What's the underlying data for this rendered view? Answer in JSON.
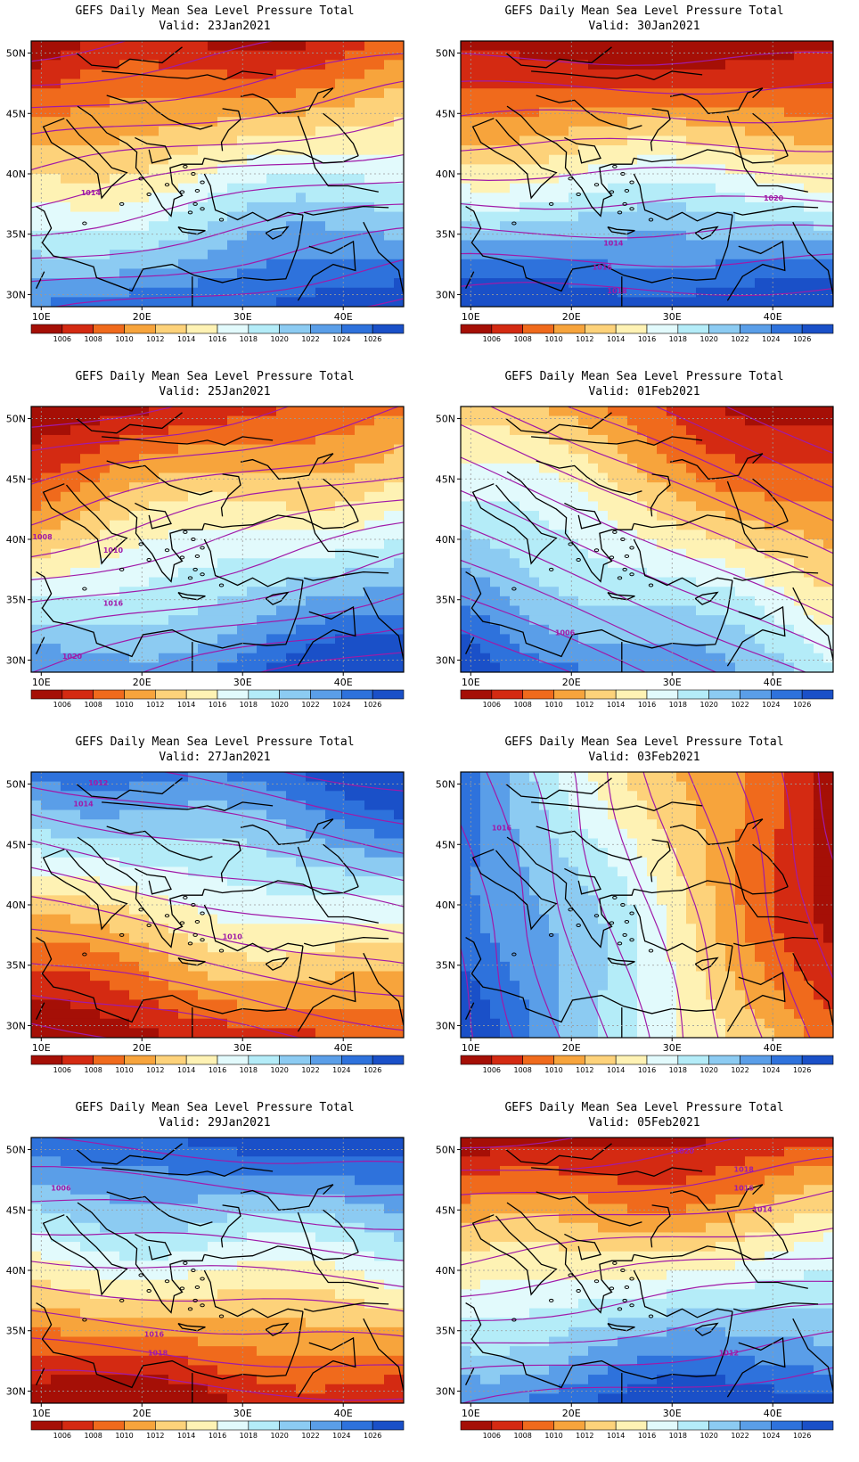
{
  "map_title": "GEFS Daily Mean Sea Level Pressure Total",
  "valid_prefix": "Valid:",
  "lat_labels": [
    "50N",
    "45N",
    "40N",
    "35N",
    "30N"
  ],
  "lat_values": [
    50,
    45,
    40,
    35,
    30
  ],
  "lon_labels": [
    "10E",
    "20E",
    "30E",
    "40E"
  ],
  "lon_values": [
    10,
    20,
    30,
    40
  ],
  "colorbar": {
    "levels": [
      "1006",
      "1008",
      "1010",
      "1012",
      "1014",
      "1016",
      "1018",
      "1020",
      "1022",
      "1024",
      "1026"
    ],
    "colors": [
      "#a50f06",
      "#d42a12",
      "#f06a1c",
      "#f7a43c",
      "#fdd27a",
      "#fef2b4",
      "#e2fafc",
      "#b4ecf8",
      "#8ccbf2",
      "#5a9ee8",
      "#2e72dc",
      "#1a50c8"
    ]
  },
  "contour_color": "#a01aa8",
  "panels": [
    {
      "date": "23Jan2021",
      "grad": [
        0.2,
        1.0
      ],
      "levels": [
        "1014"
      ],
      "label_pos": [
        [
          0.16,
          0.58
        ]
      ]
    },
    {
      "date": "30Jan2021",
      "grad": [
        0.0,
        1.0
      ],
      "levels": [
        "1014",
        "1018",
        "1020",
        "1016"
      ],
      "label_pos": [
        [
          0.41,
          0.77
        ],
        [
          0.42,
          0.95
        ],
        [
          0.84,
          0.6
        ],
        [
          0.38,
          0.86
        ]
      ]
    },
    {
      "date": "25Jan2021",
      "grad": [
        0.3,
        1.0
      ],
      "levels": [
        "1016",
        "1020",
        "1010",
        "1008"
      ],
      "label_pos": [
        [
          0.22,
          0.75
        ],
        [
          0.11,
          0.95
        ],
        [
          0.22,
          0.55
        ],
        [
          0.03,
          0.5
        ]
      ]
    },
    {
      "date": "01Feb2021",
      "grad": [
        -0.6,
        1.0
      ],
      "levels": [
        "1006"
      ],
      "label_pos": [
        [
          0.28,
          0.86
        ]
      ]
    },
    {
      "date": "27Jan2021",
      "grad": [
        0.2,
        -0.8
      ],
      "levels": [
        "1012",
        "1014",
        "1010"
      ],
      "label_pos": [
        [
          0.18,
          0.05
        ],
        [
          0.14,
          0.13
        ],
        [
          0.54,
          0.63
        ]
      ]
    },
    {
      "date": "03Feb2021",
      "grad": [
        -0.5,
        0.1
      ],
      "levels": [
        "1016"
      ],
      "label_pos": [
        [
          0.11,
          0.22
        ]
      ]
    },
    {
      "date": "29Jan2021",
      "grad": [
        0.1,
        -1.0
      ],
      "levels": [
        "1006",
        "1016",
        "1018"
      ],
      "label_pos": [
        [
          0.08,
          0.2
        ],
        [
          0.33,
          0.75
        ],
        [
          0.34,
          0.82
        ]
      ]
    },
    {
      "date": "05Feb2021",
      "grad": [
        0.1,
        0.7
      ],
      "levels": [
        "1020",
        "1018",
        "1016",
        "1014",
        "1012"
      ],
      "label_pos": [
        [
          0.6,
          0.06
        ],
        [
          0.76,
          0.13
        ],
        [
          0.76,
          0.2
        ],
        [
          0.81,
          0.28
        ],
        [
          0.72,
          0.82
        ]
      ]
    }
  ]
}
